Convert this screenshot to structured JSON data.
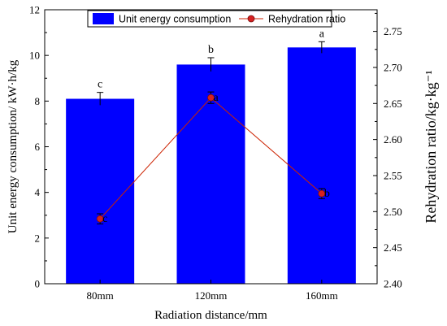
{
  "chart_data": {
    "type": "bar+line",
    "categories": [
      "80mm",
      "120mm",
      "160mm"
    ],
    "xlabel": "Radiation distance/mm",
    "series": [
      {
        "name": "Unit energy consumption",
        "type": "bar",
        "axis": "left",
        "values": [
          8.1,
          9.6,
          10.35
        ],
        "errors": [
          0.28,
          0.3,
          0.25
        ],
        "letters": [
          "c",
          "b",
          "a"
        ]
      },
      {
        "name": "Rehydration ratio",
        "type": "line",
        "axis": "right",
        "values": [
          2.49,
          2.658,
          2.525
        ],
        "errors": [
          0.007,
          0.008,
          0.007
        ],
        "letters": [
          "c",
          "a",
          "b"
        ]
      }
    ],
    "y_left": {
      "label": "Unit energy consumption/ kW·h/kg",
      "ylim": [
        0,
        12
      ],
      "ticks": [
        "0",
        "2",
        "4",
        "6",
        "8",
        "10",
        "12"
      ]
    },
    "y_right": {
      "label": "Rehydration ratio/kg·kg⁻¹",
      "ylim": [
        2.4,
        2.78
      ],
      "ticks": [
        "2.40",
        "2.45",
        "2.50",
        "2.55",
        "2.60",
        "2.65",
        "2.70",
        "2.75"
      ]
    },
    "legend_position": "top",
    "colors": {
      "bar": "#0000ff",
      "line": "#cc2200",
      "marker": "#d62020"
    }
  }
}
